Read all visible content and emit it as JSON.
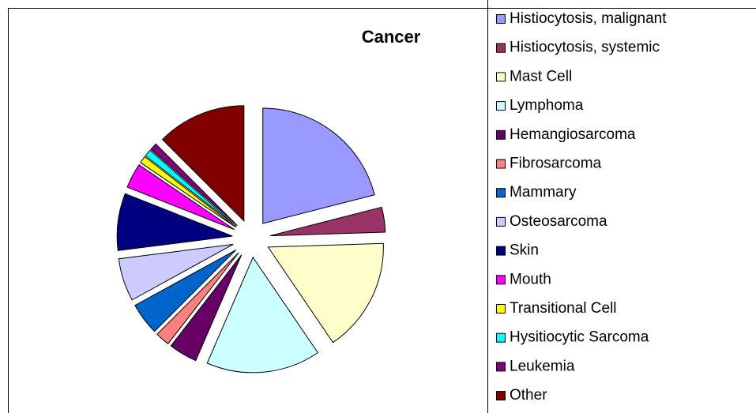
{
  "chart_data": {
    "type": "pie",
    "title": "Cancer",
    "categories": [
      "Histiocytosis, malignant",
      "Histiocytosis, systemic",
      "Mast Cell",
      "Lymphoma",
      "Hemangiosarcoma",
      "Fibrosarcoma",
      "Mammary",
      "Osteosarcoma",
      "Skin",
      "Mouth",
      "Transitional Cell",
      "Hysitiocytic Sarcoma",
      "Leukemia",
      "Other"
    ],
    "values": [
      21,
      3.5,
      16,
      16,
      4,
      2,
      4.5,
      6,
      8,
      3.5,
      1,
      1,
      1,
      12.5
    ],
    "colors": [
      "#9999FF",
      "#993366",
      "#FFFFCC",
      "#CCFFFF",
      "#660066",
      "#FF8080",
      "#0066CC",
      "#CCCCFF",
      "#000080",
      "#FF00FF",
      "#FFFF00",
      "#00FFFF",
      "#800080",
      "#800000"
    ],
    "legend": "right"
  }
}
